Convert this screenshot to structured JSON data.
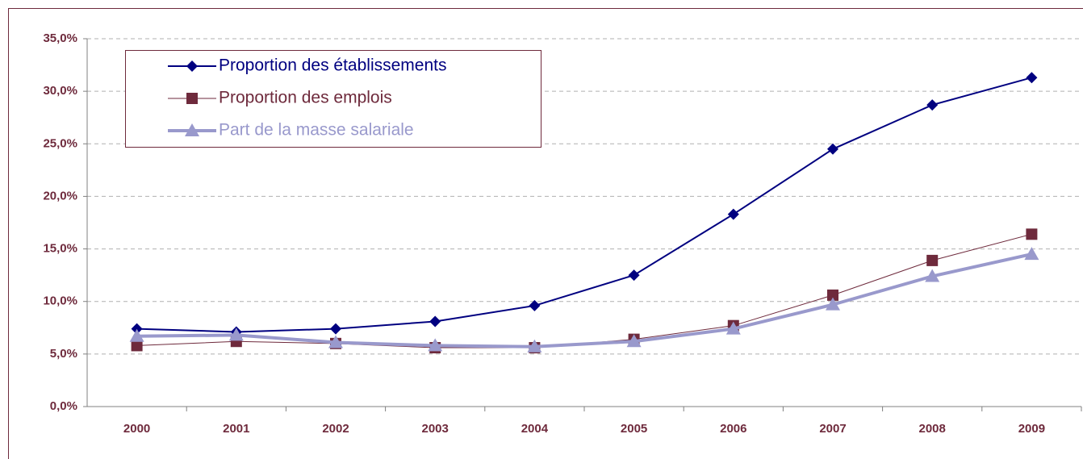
{
  "chart_data": {
    "type": "line",
    "categories": [
      "2000",
      "2001",
      "2002",
      "2003",
      "2004",
      "2005",
      "2006",
      "2007",
      "2008",
      "2009"
    ],
    "series": [
      {
        "name": "Proportion des établissements",
        "color": "#000080",
        "marker": "diamond",
        "width": 2,
        "values": [
          7.4,
          7.1,
          7.4,
          8.1,
          9.6,
          12.5,
          18.3,
          24.5,
          28.7,
          31.3
        ]
      },
      {
        "name": "Proportion des emplois",
        "color": "#6e2a3c",
        "marker": "square",
        "width": 1,
        "values": [
          5.8,
          6.2,
          6.0,
          5.6,
          5.6,
          6.4,
          7.7,
          10.6,
          13.9,
          16.4
        ]
      },
      {
        "name": "Part de la masse salariale",
        "color": "#9999cc",
        "marker": "triangle",
        "width": 4,
        "values": [
          6.7,
          6.8,
          6.1,
          5.8,
          5.7,
          6.2,
          7.4,
          9.7,
          12.4,
          14.5
        ]
      }
    ],
    "ylim": [
      0,
      35
    ],
    "yticks": [
      {
        "value": 0,
        "label": "0,0%"
      },
      {
        "value": 5,
        "label": "5,0%"
      },
      {
        "value": 10,
        "label": "10,0%"
      },
      {
        "value": 15,
        "label": "15,0%"
      },
      {
        "value": 20,
        "label": "20,0%"
      },
      {
        "value": 25,
        "label": "25,0%"
      },
      {
        "value": 30,
        "label": "30,0%"
      },
      {
        "value": 35,
        "label": "35,0%"
      }
    ],
    "grid": true,
    "legend": "upper left"
  }
}
